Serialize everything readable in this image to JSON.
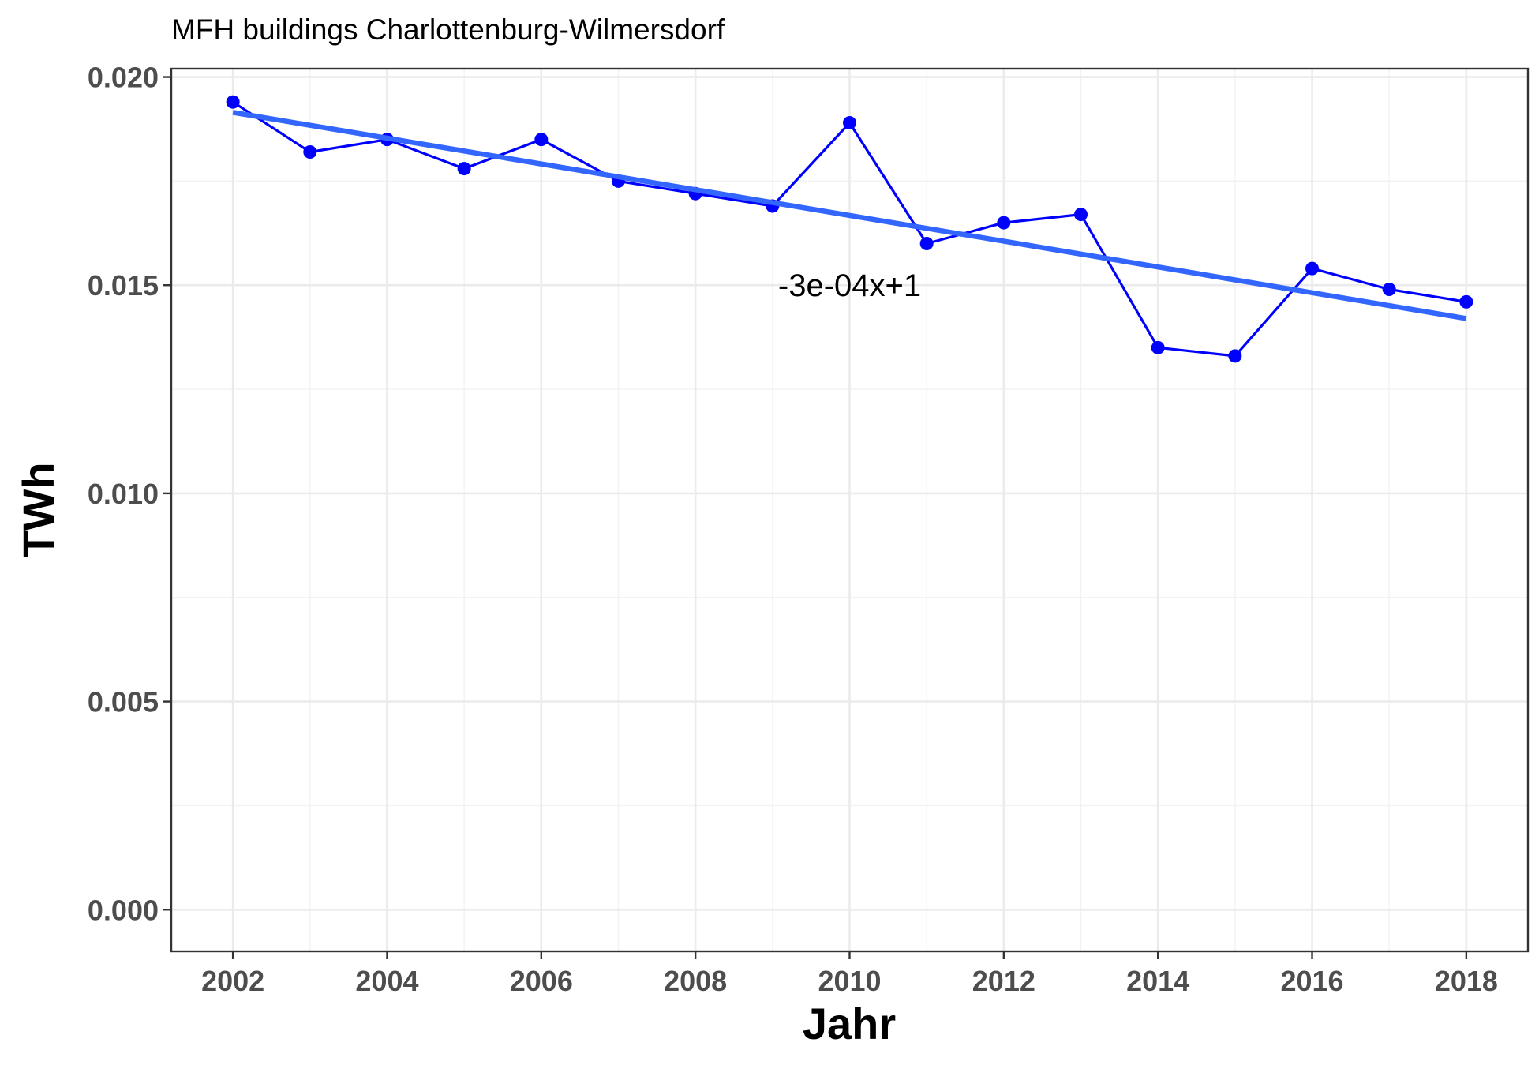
{
  "chart_data": {
    "type": "line",
    "title": "MFH buildings Charlottenburg-Wilmersdorf",
    "xlabel": "Jahr",
    "ylabel": "TWh",
    "xlim": [
      2001.2,
      2018.8
    ],
    "ylim": [
      -0.001,
      0.0202
    ],
    "x_ticks": [
      2002,
      2004,
      2006,
      2008,
      2010,
      2012,
      2014,
      2016,
      2018
    ],
    "x_tick_labels": [
      "2002",
      "2004",
      "2006",
      "2008",
      "2010",
      "2012",
      "2014",
      "2016",
      "2018"
    ],
    "y_ticks": [
      0.0,
      0.005,
      0.01,
      0.015,
      0.02
    ],
    "y_tick_labels": [
      "0.000",
      "0.005",
      "0.010",
      "0.015",
      "0.020"
    ],
    "grid": true,
    "series": [
      {
        "type": "line+points",
        "color": "#0000ff",
        "x": [
          2002,
          2003,
          2004,
          2005,
          2006,
          2007,
          2008,
          2009,
          2010,
          2011,
          2012,
          2013,
          2014,
          2015,
          2016,
          2017,
          2018
        ],
        "y": [
          0.0194,
          0.0182,
          0.0185,
          0.0178,
          0.0185,
          0.0175,
          0.0172,
          0.0169,
          0.0189,
          0.016,
          0.0165,
          0.0167,
          0.0135,
          0.0133,
          0.0154,
          0.0149,
          0.0146
        ]
      },
      {
        "type": "trend",
        "color": "#3366ff",
        "x": [
          2002,
          2018
        ],
        "y": [
          0.01915,
          0.0142
        ]
      }
    ],
    "annotation": {
      "text": "-3e-04x+1",
      "x": 2010,
      "y": 0.015
    }
  }
}
